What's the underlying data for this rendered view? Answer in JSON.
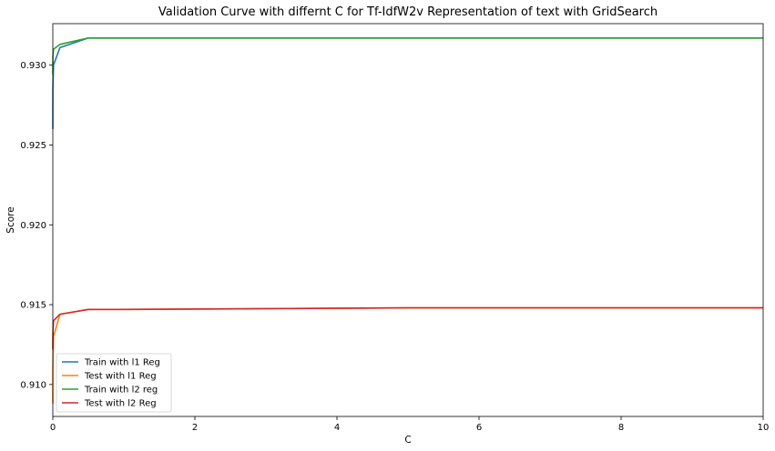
{
  "chart_data": {
    "type": "line",
    "title": "Validation Curve with differnt C for Tf-IdfW2v Representation of text with GridSearch",
    "xlabel": "C",
    "ylabel": "Score",
    "xlim": [
      0,
      10
    ],
    "ylim": [
      0.908,
      0.9326
    ],
    "xticks": [
      0,
      2,
      4,
      6,
      8,
      10
    ],
    "xtick_labels": [
      "0",
      "2",
      "4",
      "6",
      "8",
      "10"
    ],
    "yticks": [
      0.91,
      0.915,
      0.92,
      0.925,
      0.93
    ],
    "ytick_labels": [
      "0.910",
      "0.915",
      "0.920",
      "0.925",
      "0.930"
    ],
    "grid": false,
    "legend_position": "bottom-left",
    "x": [
      0.0001,
      0.001,
      0.01,
      0.1,
      0.5,
      1,
      5,
      10
    ],
    "series": [
      {
        "name": "Train with l1 Reg",
        "color": "#1f77b4",
        "values": [
          0.926,
          0.9285,
          0.93,
          0.9311,
          0.9317,
          0.9317,
          0.9317,
          0.9317
        ]
      },
      {
        "name": "Test with l1 Reg",
        "color": "#ff7f0e",
        "values": [
          0.9088,
          0.911,
          0.913,
          0.9144,
          0.9147,
          0.9147,
          0.9148,
          0.9148
        ]
      },
      {
        "name": "Train with l2 reg",
        "color": "#2ca02c",
        "values": [
          0.9294,
          0.9305,
          0.931,
          0.9313,
          0.9317,
          0.9317,
          0.9317,
          0.9317
        ]
      },
      {
        "name": "Test with l2 Reg",
        "color": "#d62728",
        "values": [
          0.9122,
          0.9132,
          0.914,
          0.9144,
          0.9147,
          0.9147,
          0.9148,
          0.9148
        ]
      }
    ]
  }
}
